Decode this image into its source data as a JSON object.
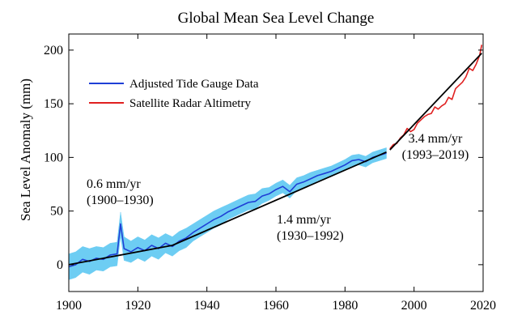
{
  "chart_data": {
    "type": "line",
    "title": "Global Mean Sea Level Change",
    "xlabel": "",
    "ylabel": "Sea Level Anomaly (mm)",
    "xlim": [
      1900,
      2020
    ],
    "ylim": [
      -25,
      215
    ],
    "x_ticks": [
      1900,
      1920,
      1940,
      1960,
      1980,
      2000,
      2020
    ],
    "y_ticks": [
      0,
      50,
      100,
      150,
      200
    ],
    "legend": {
      "placement": "upper-left",
      "entries": [
        {
          "label": "Adjusted Tide Gauge Data",
          "color": "#1f3fd6"
        },
        {
          "label": "Satellite Radar Altimetry",
          "color": "#e02020"
        }
      ]
    },
    "colors": {
      "tide_gauge": "#1f3fd6",
      "uncertainty_band": "#5ec8f2",
      "satellite": "#e02020",
      "trend": "#000000"
    },
    "series": [
      {
        "name": "Adjusted Tide Gauge Data",
        "x": [
          1900,
          1902,
          1904,
          1906,
          1908,
          1910,
          1912,
          1914,
          1915,
          1916,
          1918,
          1920,
          1922,
          1924,
          1926,
          1928,
          1930,
          1932,
          1934,
          1936,
          1938,
          1940,
          1942,
          1944,
          1946,
          1948,
          1950,
          1952,
          1954,
          1956,
          1958,
          1960,
          1962,
          1964,
          1966,
          1968,
          1970,
          1972,
          1974,
          1976,
          1978,
          1980,
          1982,
          1984,
          1986,
          1988,
          1990,
          1992
        ],
        "y": [
          -2,
          0,
          5,
          3,
          6,
          5,
          9,
          10,
          38,
          15,
          12,
          16,
          13,
          18,
          15,
          20,
          17,
          22,
          25,
          30,
          34,
          38,
          42,
          45,
          49,
          52,
          55,
          58,
          59,
          64,
          66,
          70,
          73,
          68,
          75,
          77,
          80,
          83,
          85,
          87,
          90,
          93,
          97,
          98,
          96,
          100,
          102,
          104
        ],
        "band_half_width": [
          12,
          12,
          12,
          12,
          11,
          11,
          11,
          11,
          11,
          11,
          10,
          10,
          10,
          10,
          10,
          9,
          9,
          9,
          9,
          8,
          8,
          8,
          8,
          8,
          7,
          7,
          7,
          7,
          7,
          7,
          6,
          6,
          6,
          6,
          6,
          6,
          6,
          5,
          5,
          5,
          5,
          5,
          5,
          5,
          5,
          5,
          5,
          5
        ]
      },
      {
        "name": "Satellite Radar Altimetry",
        "x": [
          1993,
          1994,
          1995,
          1996,
          1997,
          1998,
          1999,
          2000,
          2001,
          2002,
          2003,
          2004,
          2005,
          2006,
          2007,
          2008,
          2009,
          2010,
          2011,
          2012,
          2013,
          2014,
          2015,
          2016,
          2017,
          2018,
          2019,
          2019.6
        ],
        "y": [
          108,
          112,
          113,
          118,
          121,
          127,
          124,
          126,
          132,
          135,
          138,
          140,
          141,
          147,
          145,
          148,
          150,
          156,
          154,
          164,
          167,
          170,
          175,
          183,
          181,
          187,
          195,
          205
        ]
      }
    ],
    "trends": [
      {
        "label_rate": "0.6 mm/yr",
        "label_period": "(1900–1930)",
        "x": [
          1900,
          1930
        ],
        "y": [
          0,
          18
        ]
      },
      {
        "label_rate": "1.4 mm/yr",
        "label_period": "(1930–1992)",
        "x": [
          1930,
          1992
        ],
        "y": [
          18,
          105
        ]
      },
      {
        "label_rate": "3.4 mm/yr",
        "label_period": "(1993–2019)",
        "x": [
          1993,
          2019.6
        ],
        "y": [
          107,
          197
        ]
      }
    ]
  }
}
